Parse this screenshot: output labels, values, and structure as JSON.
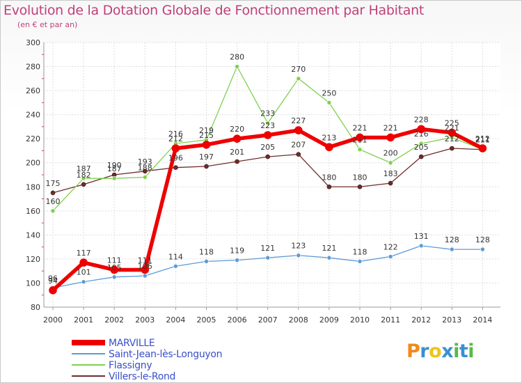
{
  "title": "Evolution de la Dotation Globale de Fonctionnement par Habitant",
  "subtitle": "(en € et par an)",
  "logo": {
    "text": "Proxiti",
    "colors": [
      "#f08a1c",
      "#3a8fd1",
      "#f0c419",
      "#3a8fd1",
      "#58b947",
      "#3a8fd1",
      "#58b947"
    ]
  },
  "chart_data": {
    "type": "line",
    "title": "Evolution de la Dotation Globale de Fonctionnement par Habitant",
    "subtitle": "(en € et par an)",
    "x": [
      "2000",
      "2001",
      "2002",
      "2003",
      "2004",
      "2005",
      "2006",
      "2007",
      "2008",
      "2009",
      "2010",
      "2011",
      "2012",
      "2013",
      "2014"
    ],
    "ylim": [
      80,
      300
    ],
    "yticks": [
      80,
      100,
      120,
      140,
      160,
      180,
      200,
      220,
      240,
      260,
      280,
      300
    ],
    "grid": true,
    "legend_position": "bottom-left",
    "series": [
      {
        "name": "MARVILLE",
        "color": "#ee0000",
        "values": [
          94,
          117,
          111,
          111,
          212,
          215,
          220,
          223,
          227,
          213,
          221,
          221,
          228,
          225,
          212
        ]
      },
      {
        "name": "Saint-Jean-lès-Longuyon",
        "color": "#5b9bd5",
        "values": [
          96,
          101,
          105,
          106,
          114,
          118,
          119,
          121,
          123,
          121,
          118,
          122,
          131,
          128,
          128
        ]
      },
      {
        "name": "Flassigny",
        "color": "#80d050",
        "values": [
          160,
          187,
          187,
          188,
          216,
          219,
          280,
          233,
          270,
          250,
          211,
          200,
          216,
          221,
          211
        ]
      },
      {
        "name": "Villers-le-Rond",
        "color": "#6e2c2c",
        "values": [
          175,
          182,
          190,
          193,
          196,
          197,
          201,
          205,
          207,
          180,
          180,
          183,
          205,
          212,
          211
        ]
      }
    ],
    "data_labels": [
      [
        "94",
        "117",
        "111",
        "111",
        "212",
        "215",
        "220",
        "223",
        "227",
        "213",
        "221",
        "221",
        "228",
        "225",
        "212"
      ],
      [
        "96",
        "101",
        "105",
        "106",
        "114",
        "118",
        "119",
        "121",
        "123",
        "121",
        "118",
        "122",
        "131",
        "128",
        "128"
      ],
      [
        "160",
        "187",
        "187",
        "188",
        "216",
        "219",
        "280",
        "233",
        "270",
        "250",
        "211",
        "200",
        "216",
        "221",
        "211"
      ],
      [
        "175",
        "182",
        "190",
        "193",
        "196",
        "197",
        "201",
        "205",
        "207",
        "180",
        "180",
        "183",
        "205",
        "212",
        "211"
      ]
    ]
  }
}
